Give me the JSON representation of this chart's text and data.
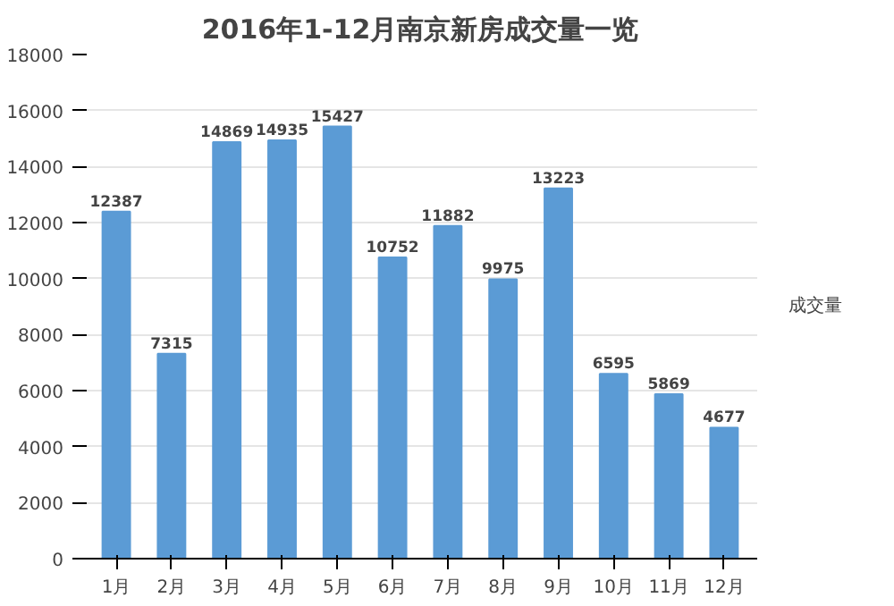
{
  "chart_data": {
    "type": "bar",
    "title": "2016年1-12月南京新房成交量一览",
    "categories": [
      "1月",
      "2月",
      "3月",
      "4月",
      "5月",
      "6月",
      "7月",
      "8月",
      "9月",
      "10月",
      "11月",
      "12月"
    ],
    "series": [
      {
        "name": "成交量",
        "color": "#5b9bd5",
        "values": [
          12387,
          7315,
          14869,
          14935,
          15427,
          10752,
          11882,
          9975,
          13223,
          6595,
          5869,
          4677
        ]
      }
    ],
    "ylim": [
      0,
      18000
    ],
    "yticks": [
      0,
      2000,
      4000,
      6000,
      8000,
      10000,
      12000,
      14000,
      16000,
      18000
    ],
    "grid": "y",
    "legend": "right",
    "data_labels": true
  }
}
